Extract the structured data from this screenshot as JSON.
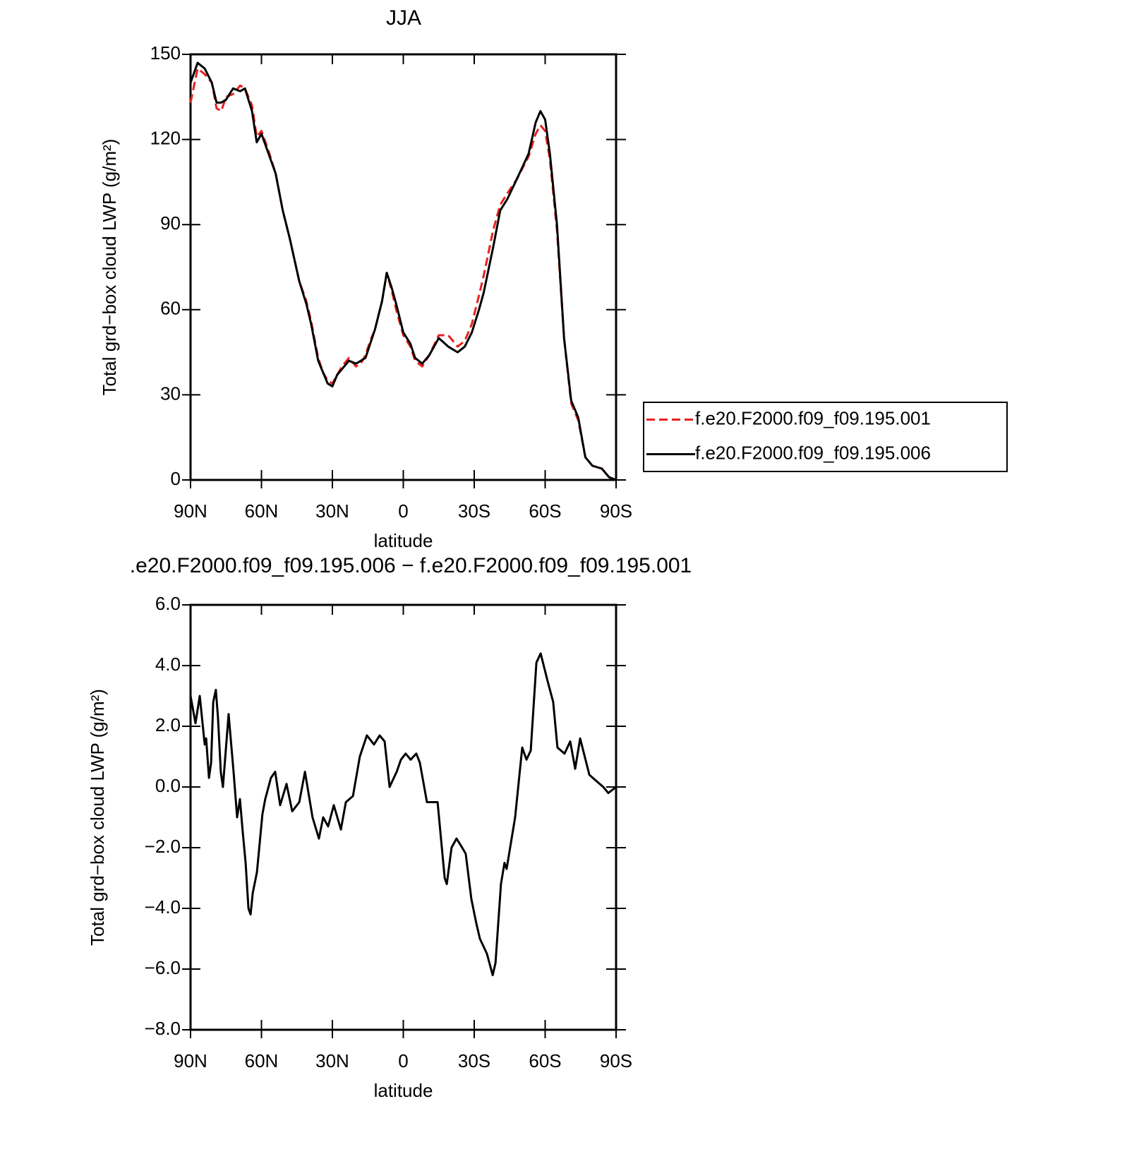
{
  "chart_data": [
    {
      "type": "line",
      "title": "JJA",
      "xlabel": "latitude",
      "ylabel": "Total grd−box cloud LWP (g/m²)",
      "xlim": [
        90,
        -90
      ],
      "xticks": [
        {
          "value": 90,
          "label": "90N"
        },
        {
          "value": 60,
          "label": "60N"
        },
        {
          "value": 30,
          "label": "30N"
        },
        0,
        {
          "value": -30,
          "label": "30S"
        },
        {
          "value": -60,
          "label": "60S"
        },
        {
          "value": -90,
          "label": "90S"
        }
      ],
      "ylim": [
        0,
        150
      ],
      "yticks": [
        0,
        30,
        60,
        90,
        120,
        150
      ],
      "legend": "right",
      "x": [
        90,
        87,
        84,
        81,
        79,
        77,
        75,
        72,
        69,
        67,
        64,
        62,
        60,
        57,
        54,
        51,
        48,
        44,
        41,
        39,
        36,
        34,
        32,
        30,
        28,
        26,
        23,
        20,
        18,
        16,
        14,
        12,
        9,
        7,
        5,
        3,
        0,
        -3,
        -5,
        -8,
        -11,
        -15,
        -19,
        -23,
        -26,
        -29,
        -32,
        -34,
        -38,
        -41,
        -44,
        -48,
        -53,
        -56,
        -58,
        -60,
        -62,
        -65,
        -68,
        -71,
        -74,
        -77,
        -80,
        -84,
        -87,
        -90
      ],
      "series": [
        {
          "name": "f.e20.F2000.f09_f09.195.001",
          "color": "#e8201e",
          "style": "dashed",
          "values": [
            133,
            145,
            143,
            140,
            131,
            130,
            135,
            136,
            139,
            138,
            132,
            121,
            123,
            116,
            108,
            95,
            85,
            70,
            63,
            56,
            43,
            38,
            35,
            34,
            37,
            40,
            43,
            40,
            41,
            44,
            49,
            53,
            63,
            73,
            67,
            60,
            51,
            47,
            42,
            40,
            44,
            51,
            51,
            47,
            49,
            55,
            65,
            72,
            88,
            97,
            101,
            106,
            114,
            122,
            125,
            123,
            113,
            88,
            50,
            27,
            21,
            8,
            5,
            4,
            1,
            0
          ]
        },
        {
          "name": "f.e20.F2000.f09_f09.195.006",
          "color": "#000000",
          "style": "solid",
          "values": [
            140,
            147,
            145,
            140,
            133,
            133,
            134,
            138,
            137,
            138,
            130,
            119,
            122,
            115,
            108,
            95,
            85,
            70,
            62,
            55,
            42,
            38,
            34,
            33,
            37,
            39,
            42,
            41,
            42,
            43,
            48,
            53,
            63,
            73,
            68,
            62,
            52,
            48,
            43,
            41,
            44,
            50,
            47,
            45,
            47,
            52,
            60,
            66,
            82,
            95,
            99,
            106,
            115,
            126,
            130,
            127,
            115,
            90,
            50,
            28,
            22,
            8,
            5,
            4,
            1,
            0
          ]
        }
      ]
    },
    {
      "type": "line",
      "title": ".e20.F2000.f09_f09.195.006 − f.e20.F2000.f09_f09.195.001",
      "xlabel": "latitude",
      "ylabel": "Total grd−box cloud LWP (g/m²)",
      "xlim": [
        90,
        -90
      ],
      "xticks": [
        {
          "value": 90,
          "label": "90N"
        },
        {
          "value": 60,
          "label": "60N"
        },
        {
          "value": 30,
          "label": "30N"
        },
        0,
        {
          "value": -30,
          "label": "30S"
        },
        {
          "value": -60,
          "label": "60S"
        },
        {
          "value": -90,
          "label": "90S"
        }
      ],
      "ylim": [
        -8,
        6
      ],
      "yticks": [
        {
          "value": -8,
          "label": "−8.0"
        },
        {
          "value": -6,
          "label": "−6.0"
        },
        {
          "value": -4,
          "label": "−4.0"
        },
        {
          "value": -2,
          "label": "−2.0"
        },
        {
          "value": 0,
          "label": "0.0"
        },
        {
          "value": 2,
          "label": "2.0"
        },
        {
          "value": 4,
          "label": "4.0"
        },
        {
          "value": 6,
          "label": "6.0"
        }
      ],
      "x": [
        90,
        87.9,
        86.1,
        84.0,
        83.4,
        82.2,
        81.3,
        80.4,
        79.3,
        78.4,
        77.2,
        76.3,
        75.1,
        73.9,
        71.8,
        70.3,
        69.1,
        67.9,
        66.7,
        65.5,
        64.6,
        63.7,
        61.9,
        59.6,
        58.4,
        56.0,
        54.2,
        52.1,
        49.4,
        47.0,
        44.0,
        41.6,
        38.4,
        35.7,
        33.9,
        31.8,
        29.4,
        26.4,
        24.3,
        21.3,
        18.4,
        15.4,
        12.4,
        10.0,
        7.9,
        5.8,
        2.8,
        1.0,
        -1.0,
        -3.1,
        -5.5,
        -7.0,
        -10.0,
        -14.5,
        -17.5,
        -18.4,
        -20.4,
        -22.5,
        -24.9,
        -26.4,
        -28.8,
        -30.9,
        -32.4,
        -35.4,
        -37.8,
        -39.0,
        -41.3,
        -42.8,
        -43.7,
        -47.3,
        -50.3,
        -52.1,
        -53.9,
        -56.3,
        -58.1,
        -61.0,
        -63.4,
        -65.2,
        -68.2,
        -70.6,
        -72.7,
        -74.8,
        -78.7,
        -81.6,
        -84.6,
        -86.7,
        -90
      ],
      "series": [
        {
          "color": "#000000",
          "style": "solid",
          "values": [
            3.0,
            2.1,
            3.0,
            1.4,
            1.6,
            0.3,
            0.8,
            2.8,
            3.2,
            2.3,
            0.5,
            0.0,
            1.2,
            2.4,
            0.5,
            -1.0,
            -0.4,
            -1.5,
            -2.5,
            -4.0,
            -4.2,
            -3.5,
            -2.8,
            -0.9,
            -0.4,
            0.3,
            0.5,
            -0.6,
            0.1,
            -0.8,
            -0.5,
            0.5,
            -1.0,
            -1.7,
            -1.0,
            -1.3,
            -0.6,
            -1.4,
            -0.5,
            -0.3,
            1.0,
            1.7,
            1.4,
            1.7,
            1.5,
            0.0,
            0.5,
            0.9,
            1.1,
            0.9,
            1.1,
            0.8,
            -0.5,
            -0.5,
            -3.0,
            -3.2,
            -2.0,
            -1.7,
            -2.0,
            -2.2,
            -3.7,
            -4.5,
            -5.0,
            -5.5,
            -6.2,
            -5.8,
            -3.2,
            -2.5,
            -2.7,
            -1.0,
            1.3,
            0.9,
            1.2,
            4.1,
            4.4,
            3.5,
            2.8,
            1.3,
            1.1,
            1.5,
            0.6,
            1.6,
            0.4,
            0.2,
            0.0,
            -0.2,
            0.0
          ]
        }
      ]
    }
  ]
}
